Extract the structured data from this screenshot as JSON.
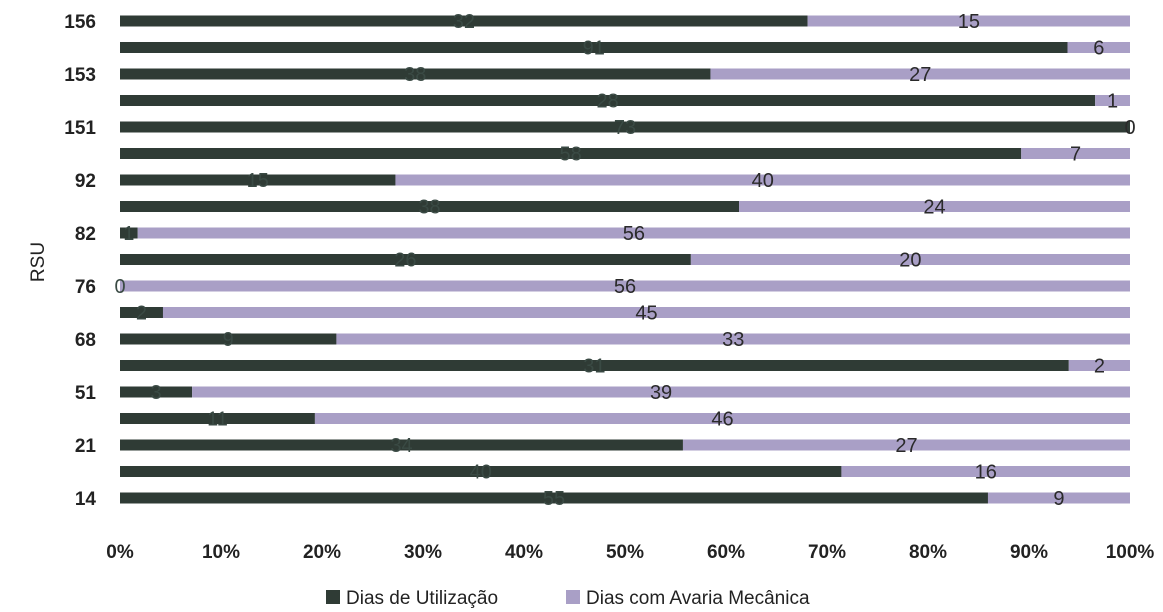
{
  "chart_data": {
    "type": "bar",
    "orientation": "horizontal",
    "stacked": "percent",
    "title": "",
    "xlabel": "",
    "ylabel": "RSU",
    "xlim": [
      0,
      100
    ],
    "x_ticks": [
      "0%",
      "10%",
      "20%",
      "30%",
      "40%",
      "50%",
      "60%",
      "70%",
      "80%",
      "90%",
      "100%"
    ],
    "categories": [
      "14",
      "",
      "21",
      "",
      "51",
      "",
      "68",
      "",
      "76",
      "",
      "82",
      "",
      "92",
      "",
      "151",
      "",
      "153",
      "",
      "156"
    ],
    "series": [
      {
        "name": "Dias de Utilização",
        "color": "#2f3b35",
        "values": [
          55,
          40,
          34,
          11,
          3,
          31,
          9,
          2,
          0,
          26,
          1,
          38,
          15,
          58,
          73,
          28,
          38,
          91,
          32
        ]
      },
      {
        "name": "Dias com Avaria Mecânica",
        "color": "#a99fc6",
        "values": [
          9,
          16,
          27,
          46,
          39,
          2,
          33,
          45,
          56,
          20,
          56,
          24,
          40,
          7,
          0,
          1,
          27,
          6,
          15
        ]
      }
    ],
    "grid": false,
    "legend_position": "bottom"
  }
}
